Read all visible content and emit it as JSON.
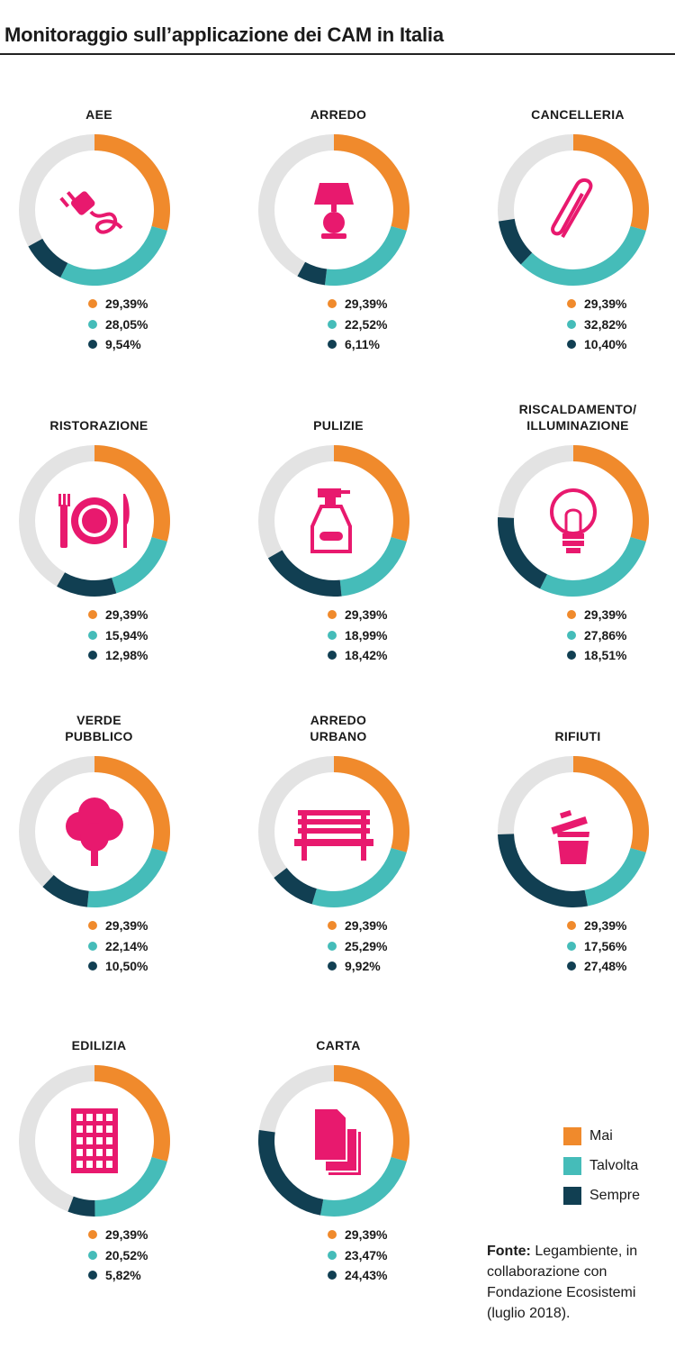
{
  "title": "Monitoraggio sull’applicazione dei CAM in Italia",
  "colors": {
    "mai": "#F08A2C",
    "talvolta": "#45BCB9",
    "sempre": "#113F52",
    "rest": "#E3E3E3",
    "icon": "#E8196E"
  },
  "legend": {
    "mai": "Mai",
    "talvolta": "Talvolta",
    "sempre": "Sempre"
  },
  "source": {
    "label": "Fonte:",
    "text": "Legambiente, in collaborazione con Fondazione Ecosistemi (luglio 2018)."
  },
  "chart_data": {
    "type": "pie",
    "series_names": [
      "Mai",
      "Talvolta",
      "Sempre"
    ],
    "charts": [
      {
        "label": "AEE",
        "icon": "plug-icon",
        "values": [
          29.39,
          28.05,
          9.54
        ],
        "labels": [
          "29,39%",
          "28,05%",
          "9,54%"
        ]
      },
      {
        "label": "ARREDO",
        "icon": "lamp-icon",
        "values": [
          29.39,
          22.52,
          6.11
        ],
        "labels": [
          "29,39%",
          "22,52%",
          "6,11%"
        ]
      },
      {
        "label": "CANCELLERIA",
        "icon": "paperclip-icon",
        "values": [
          29.39,
          32.82,
          10.4
        ],
        "labels": [
          "29,39%",
          "32,82%",
          "10,40%"
        ]
      },
      {
        "label": "RISTORAZIONE",
        "icon": "plate-cutlery-icon",
        "values": [
          29.39,
          15.94,
          12.98
        ],
        "labels": [
          "29,39%",
          "15,94%",
          "12,98%"
        ]
      },
      {
        "label": "PULIZIE",
        "icon": "spray-bottle-icon",
        "values": [
          29.39,
          18.99,
          18.42
        ],
        "labels": [
          "29,39%",
          "18,99%",
          "18,42%"
        ]
      },
      {
        "label": "RISCALDAMENTO/\nILLUMINAZIONE",
        "icon": "lightbulb-icon",
        "values": [
          29.39,
          27.86,
          18.51
        ],
        "labels": [
          "29,39%",
          "27,86%",
          "18,51%"
        ]
      },
      {
        "label": "VERDE\nPUBBLICO",
        "icon": "tree-icon",
        "values": [
          29.39,
          22.14,
          10.5
        ],
        "labels": [
          "29,39%",
          "22,14%",
          "10,50%"
        ]
      },
      {
        "label": "ARREDO\nURBANO",
        "icon": "bench-icon",
        "values": [
          29.39,
          25.29,
          9.92
        ],
        "labels": [
          "29,39%",
          "25,29%",
          "9,92%"
        ]
      },
      {
        "label": "RIFIUTI",
        "icon": "trash-bin-icon",
        "values": [
          29.39,
          17.56,
          27.48
        ],
        "labels": [
          "29,39%",
          "17,56%",
          "27,48%"
        ]
      },
      {
        "label": "EDILIZIA",
        "icon": "building-icon",
        "values": [
          29.39,
          20.52,
          5.82
        ],
        "labels": [
          "29,39%",
          "20,52%",
          "5,82%"
        ]
      },
      {
        "label": "CARTA",
        "icon": "paper-stack-icon",
        "values": [
          29.39,
          23.47,
          24.43
        ],
        "labels": [
          "29,39%",
          "23,47%",
          "24,43%"
        ]
      }
    ]
  }
}
